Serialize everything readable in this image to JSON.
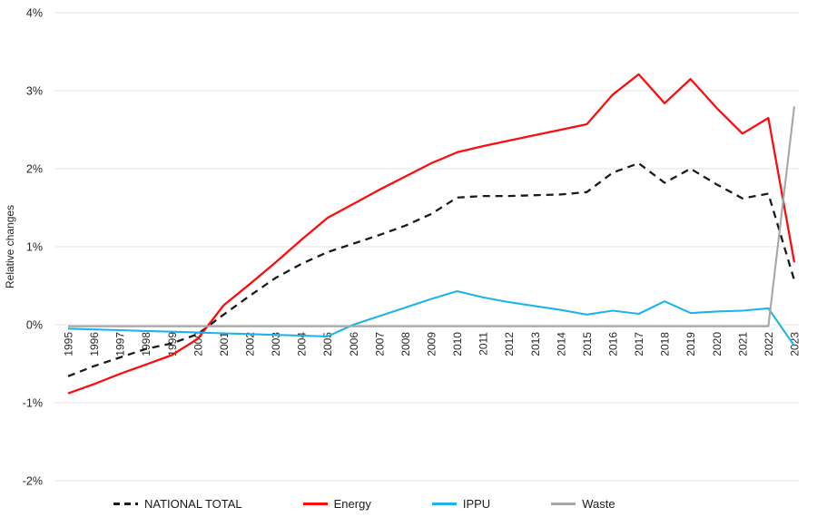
{
  "page": {
    "background": "#ffffff"
  },
  "chart_data": {
    "type": "line",
    "title": "",
    "xlabel": "",
    "ylabel": "Relative changes",
    "grid": true,
    "legend_position": "bottom",
    "ylim": [
      -2,
      4
    ],
    "y_ticks": {
      "values": [
        4,
        3,
        2,
        1,
        0,
        -1,
        -2
      ],
      "labels": [
        "4%",
        "3%",
        "2%",
        "1%",
        "0%",
        "-1%",
        "-2%"
      ]
    },
    "x_labels": [
      "1995",
      "1996",
      "1997",
      "1998",
      "1999",
      "2000",
      "2001",
      "2002",
      "2003",
      "2004",
      "2005",
      "2006",
      "2007",
      "2008",
      "2009",
      "2010",
      "2011",
      "2012",
      "2013",
      "2014",
      "2015",
      "2016",
      "2017",
      "2018",
      "2019",
      "2020",
      "2021",
      "2022",
      "2023"
    ],
    "series": [
      {
        "name": "NATIONAL TOTAL",
        "color": "#1a1a1a",
        "dash": true,
        "width": 2.3,
        "values": [
          -0.66,
          -0.53,
          -0.42,
          -0.31,
          -0.24,
          -0.12,
          0.13,
          0.37,
          0.6,
          0.78,
          0.93,
          1.04,
          1.15,
          1.27,
          1.42,
          1.63,
          1.65,
          1.65,
          1.66,
          1.67,
          1.7,
          1.95,
          2.07,
          1.82,
          2.0,
          1.8,
          1.62,
          1.68,
          0.57
        ]
      },
      {
        "name": "Energy",
        "color": "#fb0d0d",
        "dash": false,
        "width": 2.3,
        "values": [
          -0.88,
          -0.76,
          -0.63,
          -0.51,
          -0.39,
          -0.18,
          0.25,
          0.52,
          0.8,
          1.09,
          1.37,
          1.55,
          1.73,
          1.9,
          2.07,
          2.21,
          2.29,
          2.36,
          2.43,
          2.5,
          2.57,
          2.95,
          3.21,
          2.84,
          3.15,
          2.78,
          2.45,
          2.65,
          0.8
        ]
      },
      {
        "name": "IPPU",
        "color": "#1fb2ec",
        "dash": false,
        "width": 2.1,
        "values": [
          -0.05,
          -0.06,
          -0.07,
          -0.08,
          -0.09,
          -0.1,
          -0.11,
          -0.12,
          -0.13,
          -0.14,
          -0.15,
          0.0,
          0.11,
          0.22,
          0.33,
          0.43,
          0.35,
          0.29,
          0.24,
          0.19,
          0.13,
          0.18,
          0.14,
          0.3,
          0.15,
          0.17,
          0.18,
          0.21,
          -0.27
        ]
      },
      {
        "name": "Waste",
        "color": "#a6a6a6",
        "dash": false,
        "width": 2.1,
        "values": [
          -0.02,
          -0.02,
          -0.02,
          -0.02,
          -0.02,
          -0.02,
          -0.02,
          -0.02,
          -0.02,
          -0.02,
          -0.02,
          -0.02,
          -0.02,
          -0.02,
          -0.02,
          -0.02,
          -0.02,
          -0.02,
          -0.02,
          -0.02,
          -0.02,
          -0.02,
          -0.02,
          -0.02,
          -0.02,
          -0.02,
          -0.02,
          -0.02,
          2.8
        ]
      }
    ]
  }
}
